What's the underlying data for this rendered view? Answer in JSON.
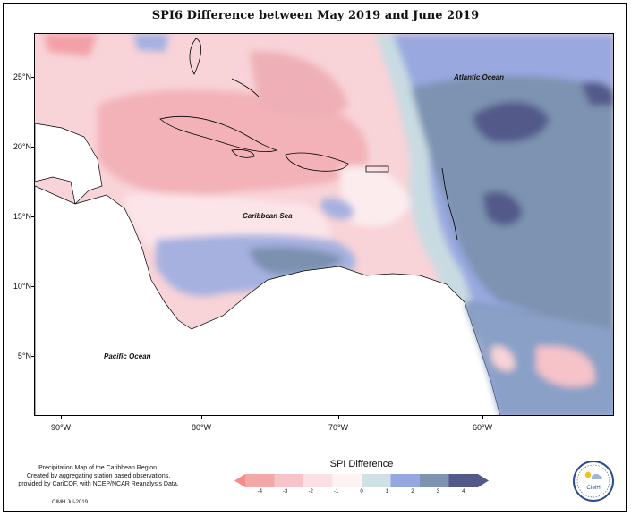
{
  "title": "SPI6 Difference between May 2019 and June 2019",
  "axes": {
    "latitudes": [
      "25°N",
      "20°N",
      "15°N",
      "10°N",
      "5°N"
    ],
    "longitudes": [
      "90°W",
      "80°W",
      "70°W",
      "60°W"
    ]
  },
  "labels": {
    "atlantic": "Atlantic Ocean",
    "caribbean": "Caribbean Sea",
    "pacific": "Pacific Ocean"
  },
  "legend": {
    "title": "SPI Difference",
    "ticks": [
      "-4",
      "-3",
      "-2",
      "-1",
      "0",
      "1",
      "2",
      "3",
      "4"
    ],
    "colors": [
      "#f58b8b",
      "#f3a8a8",
      "#f5c3c8",
      "#fae0e4",
      "#fdf3f3",
      "#cfe1e6",
      "#96a6e0",
      "#7e93b0",
      "#535a8a"
    ]
  },
  "footnote": {
    "line1": "Precipitation Map of the Caribbean Region.",
    "line2": "Created by aggregating station based observations,",
    "line3": "provided by CariCOF, with NCEP/NCAR Reanalysis Data.",
    "credit": "CIMH Jul-2019"
  },
  "logo": {
    "text": "CIMH"
  }
}
